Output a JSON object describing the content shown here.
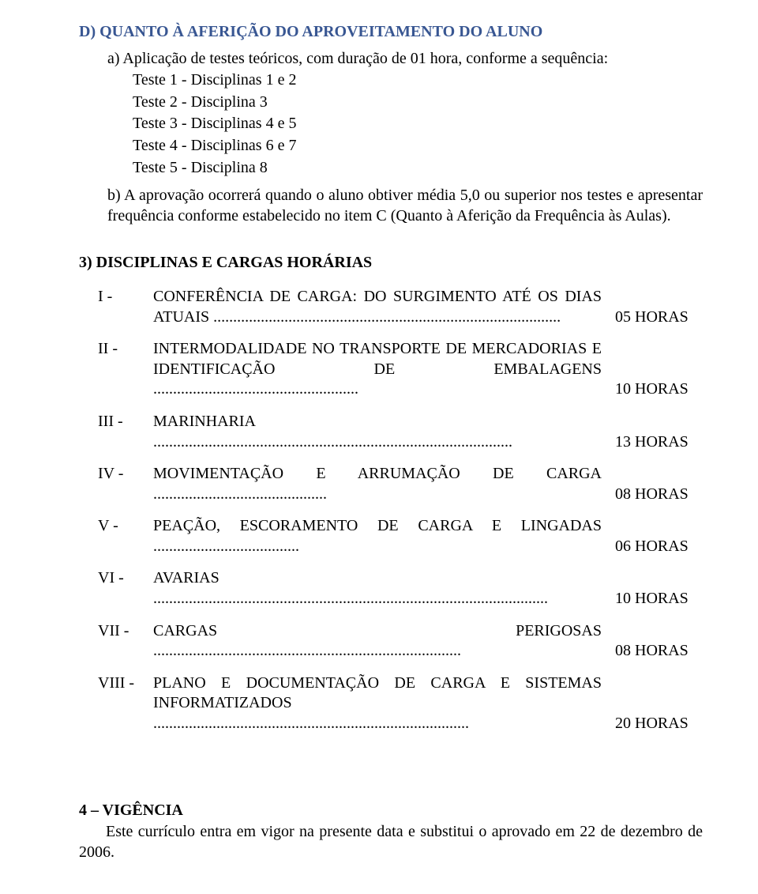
{
  "sectionD": {
    "title": "D) QUANTO À AFERIÇÃO DO APROVEITAMENTO DO ALUNO",
    "subA": "a) Aplicação de testes teóricos, com duração de 01 hora, conforme a sequência:",
    "testes": [
      "Teste 1 - Disciplinas 1 e 2",
      "Teste 2 - Disciplina 3",
      "Teste 3 - Disciplinas 4 e 5",
      "Teste 4 - Disciplinas 6 e 7",
      "Teste 5 - Disciplina 8"
    ],
    "subB": "b) A aprovação ocorrerá quando o aluno obtiver média 5,0 ou superior nos testes e apresentar frequência conforme estabelecido no item C (Quanto à Aferição da Frequência às Aulas)."
  },
  "section3": {
    "title": "3) DISCIPLINAS E CARGAS HORÁRIAS",
    "rows": [
      {
        "roman": "I -",
        "text": "CONFERÊNCIA DE CARGA: DO SURGIMENTO ATÉ OS DIAS ATUAIS ........................................................................................",
        "hours": "05 HORAS"
      },
      {
        "roman": "II -",
        "text": "INTERMODALIDADE NO TRANSPORTE DE MERCADORIAS E IDENTIFICAÇÃO DE EMBALAGENS ....................................................",
        "hours": "10 HORAS"
      },
      {
        "roman": "III -",
        "text": "MARINHARIA ...........................................................................................",
        "hours": "13 HORAS"
      },
      {
        "roman": "IV -",
        "text": "MOVIMENTAÇÃO E ARRUMAÇÃO DE CARGA ............................................",
        "hours": "08 HORAS"
      },
      {
        "roman": "V -",
        "text": "PEAÇÃO, ESCORAMENTO DE CARGA E LINGADAS .....................................",
        "hours": "06 HORAS"
      },
      {
        "roman": "VI -",
        "text": "AVARIAS ....................................................................................................",
        "hours": "10 HORAS"
      },
      {
        "roman": "VII -",
        "text": "CARGAS PERIGOSAS ..............................................................................",
        "hours": "08 HORAS"
      },
      {
        "roman": "VIII -",
        "text": "PLANO E DOCUMENTAÇÃO DE CARGA E SISTEMAS INFORMATIZADOS ................................................................................",
        "hours": "20 HORAS"
      }
    ]
  },
  "vigencia": {
    "title": "4 – VIGÊNCIA",
    "body": "Este currículo entra em vigor na presente data e substitui o aprovado em 22 de dezembro de 2006."
  }
}
